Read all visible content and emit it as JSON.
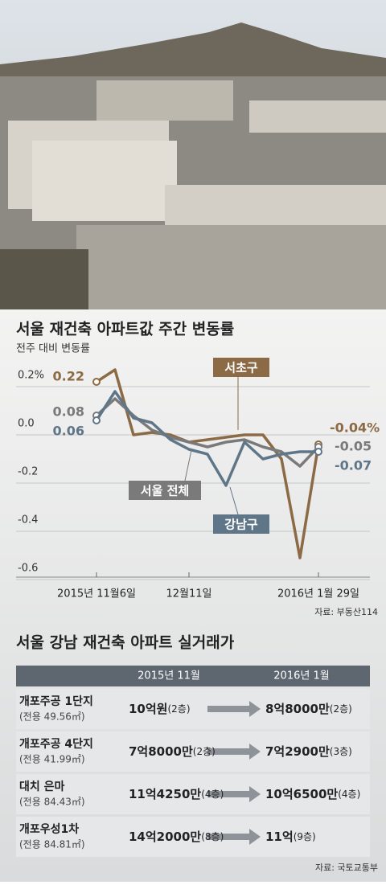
{
  "chart_data": {
    "type": "line",
    "title": "서울 재건축 아파트값 주간 변동률",
    "subtitle": "전주 대비 변동률",
    "source": "자료: 부동산114",
    "categories": [
      "2015년 11월6일",
      null,
      null,
      null,
      null,
      "12월11일",
      null,
      null,
      null,
      null,
      null,
      null,
      "2016년 1월 29일"
    ],
    "series": [
      {
        "name": "서초구",
        "color": "#8b6a45",
        "values": [
          0.22,
          0.27,
          0.0,
          0.01,
          0.0,
          -0.03,
          -0.02,
          -0.01,
          0.0,
          0.0,
          -0.1,
          -0.51,
          -0.04
        ],
        "value_labels": [
          "0.22",
          null,
          null,
          null,
          null,
          null,
          null,
          null,
          null,
          null,
          null,
          null,
          "-0.04%"
        ]
      },
      {
        "name": "서울 전체",
        "color": "#7a7a7a",
        "values": [
          0.08,
          0.15,
          0.08,
          0.02,
          -0.01,
          -0.03,
          -0.05,
          -0.03,
          -0.02,
          -0.05,
          -0.07,
          -0.13,
          -0.05
        ],
        "value_labels": [
          "0.08",
          null,
          null,
          null,
          null,
          null,
          null,
          null,
          null,
          null,
          null,
          null,
          "-0.05"
        ]
      },
      {
        "name": "강남구",
        "color": "#5f7688",
        "values": [
          0.06,
          0.18,
          0.07,
          0.05,
          -0.02,
          -0.06,
          -0.08,
          -0.21,
          -0.03,
          -0.1,
          -0.08,
          -0.07,
          -0.07
        ],
        "value_labels": [
          "0.06",
          null,
          null,
          null,
          null,
          null,
          null,
          null,
          null,
          null,
          null,
          null,
          "-0.07"
        ]
      }
    ],
    "ylim": [
      -0.6,
      0.27
    ],
    "yticks": [
      {
        "value": 0.2,
        "label": "0.2%"
      },
      {
        "value": 0,
        "label": "0.0"
      },
      -0.2,
      -0.4,
      -0.6
    ],
    "grid": true
  },
  "table": {
    "title": "서울 강남 재건축 아파트 실거래가",
    "columns": [
      "2015년 11월",
      "2016년 1월"
    ],
    "source": "자료: 국토교통부",
    "rows": [
      {
        "name": "개포주공 1단지",
        "area": "(전용 49.56㎡)",
        "before": {
          "price": "10억원",
          "floor": "(2층)"
        },
        "after": {
          "price": "8억8000만",
          "floor": "(2층)"
        }
      },
      {
        "name": "개포주공 4단지",
        "area": "(전용 41.99㎡)",
        "before": {
          "price": "7억8000만",
          "floor": "(2층)"
        },
        "after": {
          "price": "7억2900만",
          "floor": "(3층)"
        }
      },
      {
        "name": "대치 은마",
        "area": "(전용 84.43㎡)",
        "before": {
          "price": "11억4250만",
          "floor": "(4층)"
        },
        "after": {
          "price": "10억6500만",
          "floor": "(4층)"
        }
      },
      {
        "name": "개포우성1차",
        "area": "(전용 84.81㎡)",
        "before": {
          "price": "14억2000만",
          "floor": "(8층)"
        },
        "after": {
          "price": "11억",
          "floor": "(9층)"
        }
      }
    ]
  }
}
